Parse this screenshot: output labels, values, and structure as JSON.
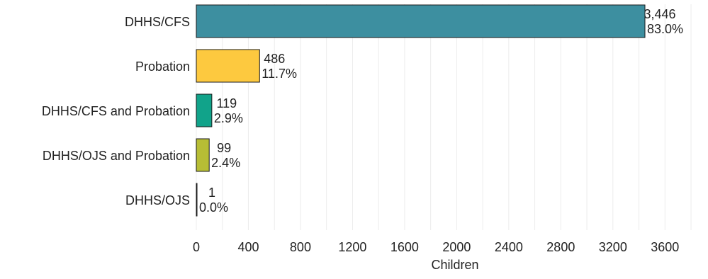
{
  "chart_data": {
    "type": "bar",
    "orientation": "horizontal",
    "categories": [
      "DHHS/CFS",
      "Probation",
      "DHHS/CFS and Probation",
      "DHHS/OJS and Probation",
      "DHHS/OJS"
    ],
    "values": [
      3446,
      486,
      119,
      99,
      1
    ],
    "value_labels": [
      "3,446",
      "486",
      "119",
      "99",
      "1"
    ],
    "percent_labels": [
      "83.0%",
      "11.7%",
      "2.9%",
      "2.4%",
      "0.0%"
    ],
    "colors": [
      "#3D8FA0",
      "#FDC93F",
      "#11A38A",
      "#B7BD35",
      "#FFFFFF"
    ],
    "xlabel": "Children",
    "ylabel": "",
    "title": "",
    "xlim": [
      0,
      4000
    ],
    "xticks": [
      0,
      400,
      800,
      1200,
      1600,
      2000,
      2400,
      2800,
      3200,
      3600
    ],
    "grid": "vertical",
    "legend": "none"
  }
}
